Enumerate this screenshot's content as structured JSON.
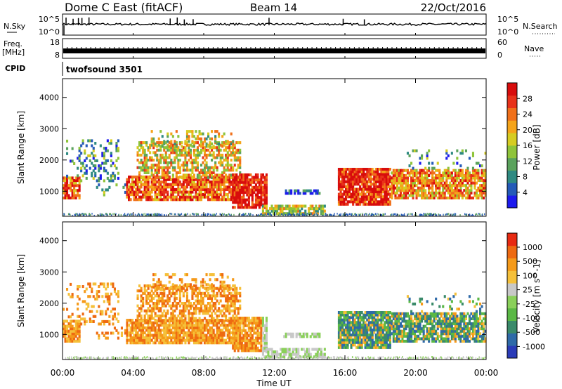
{
  "header": {
    "title": "Dome C East (fitACF)",
    "beam": "Beam 14",
    "date": "22/Oct/2016"
  },
  "noise_panel": {
    "left_label": "N.Sky",
    "left_top_tick": "10^5",
    "left_bottom_tick": "10^0",
    "right_label": "N.Search",
    "right_top_tick": "10^5",
    "right_bottom_tick": "10^0"
  },
  "freq_panel": {
    "label_line1": "Freq.",
    "label_line2": "[MHz]",
    "left_top_tick": "18",
    "left_bottom_tick": "8",
    "right_label": "Nave",
    "right_top_tick": "60",
    "right_bottom_tick": "0"
  },
  "cpid_panel": {
    "label": "CPID",
    "program": "twofsound 3501"
  },
  "chart_data": [
    {
      "type": "heatmap",
      "ylabel": "Slant Range [km]",
      "y_ticks": [
        "1000",
        "2000",
        "3000",
        "4000"
      ],
      "ylim": [
        200,
        4600
      ],
      "xlim_hours": [
        0,
        24
      ],
      "colorbar": {
        "label": "Power [dB]",
        "ticks": [
          "4",
          "8",
          "12",
          "16",
          "20",
          "24",
          "28"
        ],
        "range": [
          0,
          32
        ],
        "colors": [
          "#1d1aee",
          "#245ab8",
          "#2f8a82",
          "#5aa25c",
          "#8fc43a",
          "#d6cc22",
          "#f5a41a",
          "#f0701a",
          "#e8321a",
          "#d80c0c"
        ]
      }
    },
    {
      "type": "heatmap",
      "ylabel": "Slant Range [km]",
      "y_ticks": [
        "1000",
        "2000",
        "3000",
        "4000"
      ],
      "ylim": [
        200,
        4600
      ],
      "xlim_hours": [
        0,
        24
      ],
      "colorbar": {
        "label": "Velocity [m s^-1]",
        "ticks": [
          "1000",
          "500",
          "100",
          "25",
          "-25",
          "-100",
          "-500",
          "-1000"
        ],
        "colors": [
          "#2b3cb8",
          "#2f6aa8",
          "#3a8a6a",
          "#5ab845",
          "#8ad05a",
          "#c8c8c8",
          "#f5c03a",
          "#f59a1a",
          "#ee6a12",
          "#e82a12"
        ]
      }
    }
  ],
  "x_axis": {
    "ticks": [
      "00:00",
      "04:00",
      "08:00",
      "12:00",
      "16:00",
      "20:00",
      "00:00"
    ],
    "label": "Time UT"
  }
}
